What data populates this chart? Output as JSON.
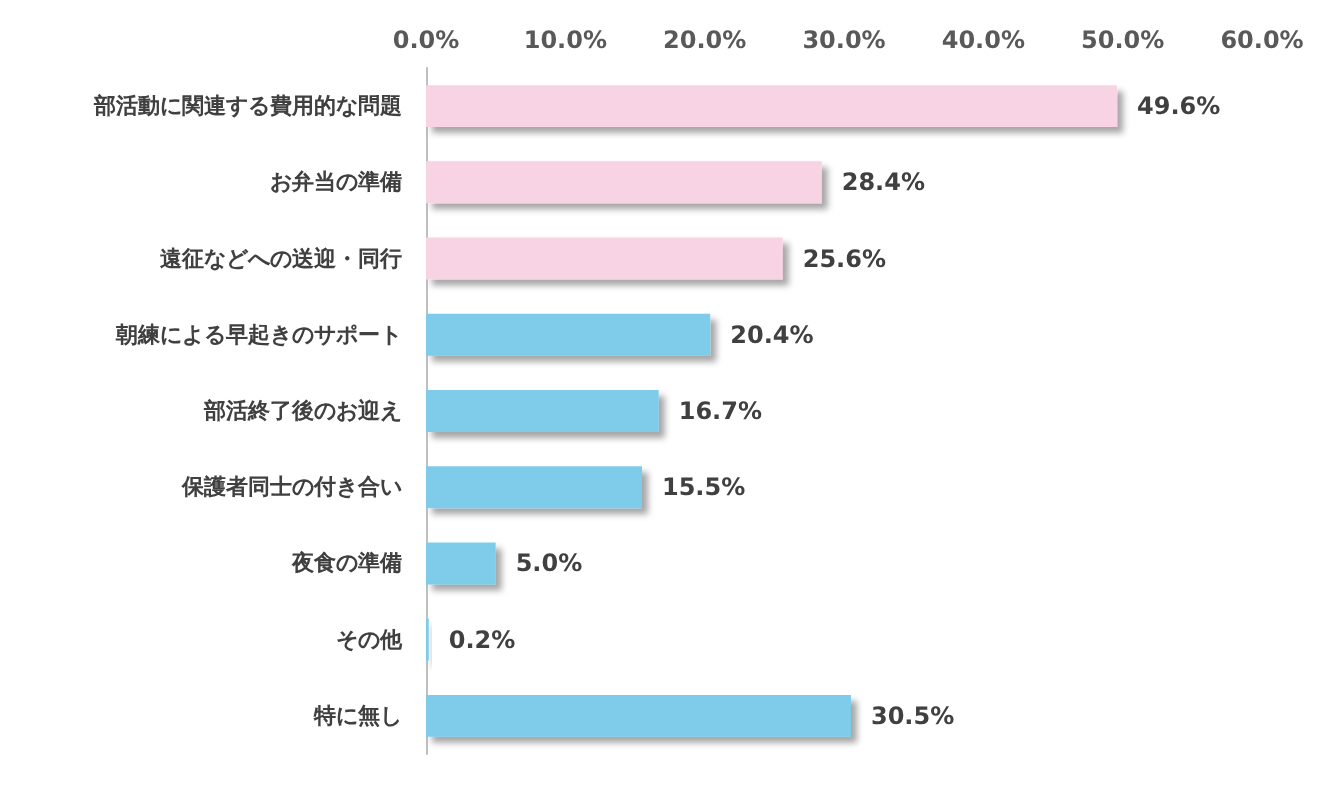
{
  "chart_data": {
    "type": "bar",
    "orientation": "horizontal",
    "categories": [
      "部活動に関連する費用的な問題",
      "お弁当の準備",
      "遠征などへの送迎・同行",
      "朝練による早起きのサポート",
      "部活終了後のお迎え",
      "保護者同士の付き合い",
      "夜食の準備",
      "その他",
      "特に無し"
    ],
    "values": [
      49.6,
      28.4,
      25.6,
      20.4,
      16.7,
      15.5,
      5.0,
      0.2,
      30.5
    ],
    "colors": [
      "#f8d3e4",
      "#f8d3e4",
      "#f8d3e4",
      "#7ecbea",
      "#7ecbea",
      "#7ecbea",
      "#7ecbea",
      "#7ecbea",
      "#7ecbea"
    ],
    "value_labels": [
      "49.6%",
      "28.4%",
      "25.6%",
      "20.4%",
      "16.7%",
      "15.5%",
      "5.0%",
      "0.2%",
      "30.5%"
    ],
    "xlim": [
      0,
      60
    ],
    "xticks": [
      {
        "value": 0,
        "label": "0.0%"
      },
      {
        "value": 10,
        "label": "10.0%"
      },
      {
        "value": 20,
        "label": "20.0%"
      },
      {
        "value": 30,
        "label": "30.0%"
      },
      {
        "value": 40,
        "label": "40.0%"
      },
      {
        "value": 50,
        "label": "50.0%"
      },
      {
        "value": 60,
        "label": "60.0%"
      }
    ],
    "grid": false
  }
}
